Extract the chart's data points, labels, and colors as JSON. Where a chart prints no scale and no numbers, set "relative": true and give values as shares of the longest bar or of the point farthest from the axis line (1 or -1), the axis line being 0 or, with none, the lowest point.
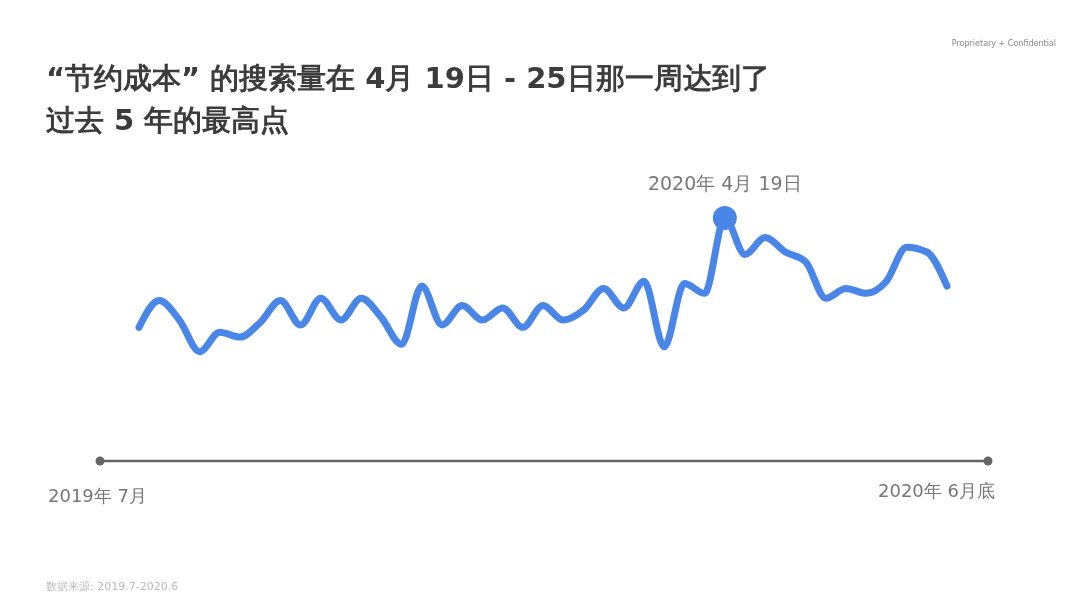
{
  "chart_data": {
    "type": "line",
    "relative": true,
    "title": "“节约成本” 的搜索量在 4月 19日 - 25日那一周达到了过去 5 年的最高点",
    "categories": [
      null,
      null,
      null,
      null,
      null,
      null,
      null,
      null,
      null,
      null,
      null,
      null,
      null,
      null,
      null,
      null,
      null,
      null,
      null,
      null,
      null,
      null,
      null,
      null,
      null,
      null,
      null,
      null,
      null,
      null,
      null,
      null,
      null,
      null,
      null,
      null,
      null,
      null,
      null,
      null,
      null
    ],
    "series": [
      {
        "color": "#4a86e8",
        "values": [
          0.55,
          0.66,
          0.58,
          0.45,
          0.53,
          0.51,
          0.57,
          0.66,
          0.56,
          0.67,
          0.58,
          0.67,
          0.59,
          0.48,
          0.72,
          0.56,
          0.64,
          0.58,
          0.63,
          0.55,
          0.64,
          0.58,
          0.62,
          0.71,
          0.63,
          0.74,
          0.47,
          0.73,
          0.69,
          1,
          0.85,
          0.92,
          0.86,
          0.82,
          0.67,
          0.71,
          0.69,
          0.74,
          0.88,
          0.86,
          0.72
        ]
      }
    ],
    "annotations": [
      {
        "text": "2020年 4月 19日",
        "y": 1
      },
      "2019年 7月",
      "2020年 6月底",
      "数据来源: 2019.7-2020.6",
      "Proprietary + Confidential"
    ],
    "marker": "none",
    "line_style": "solid"
  }
}
